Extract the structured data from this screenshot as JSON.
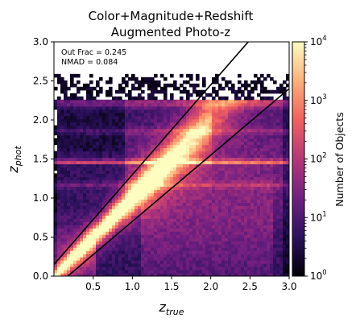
{
  "chart_data": {
    "type": "heatmap",
    "title": "Color+Magnitude+Redshift",
    "subtitle": "Augmented Photo-z",
    "xlabel": "z",
    "xlabel_sub": "true",
    "ylabel": "z",
    "ylabel_sub": "phot",
    "xlim": [
      0.0,
      3.0
    ],
    "ylim": [
      0.0,
      3.0
    ],
    "xticks": [
      0.5,
      1.0,
      1.5,
      2.0,
      2.5,
      3.0
    ],
    "xtick_labels": [
      "0.5",
      "1.0",
      "1.5",
      "2.0",
      "2.5",
      "3.0"
    ],
    "yticks": [
      0.0,
      0.5,
      1.0,
      1.5,
      2.0,
      2.5,
      3.0
    ],
    "ytick_labels": [
      "0.0",
      "0.5",
      "1.0",
      "1.5",
      "2.0",
      "2.5",
      "3.0"
    ],
    "grid": false,
    "annotations": [
      {
        "text": "Out Frac = 0.245"
      },
      {
        "text": "NMAD = 0.084"
      }
    ],
    "outlier_lines": [
      {
        "name": "upper",
        "slope": 1.15,
        "intercept": 0.15
      },
      {
        "name": "lower",
        "slope": 0.85,
        "intercept": -0.15
      }
    ],
    "colorbar": {
      "label": "Number of Objects",
      "scale": "log",
      "range": [
        1,
        10000
      ],
      "ticks": [
        1,
        10,
        100,
        1000,
        10000
      ],
      "tick_base": "10",
      "tick_exponents": [
        "0",
        "1",
        "2",
        "3",
        "4"
      ],
      "colormap": [
        "#000004",
        "#2c115f",
        "#721f81",
        "#b73779",
        "#f1605d",
        "#feb078",
        "#fcfdbf"
      ]
    }
  }
}
